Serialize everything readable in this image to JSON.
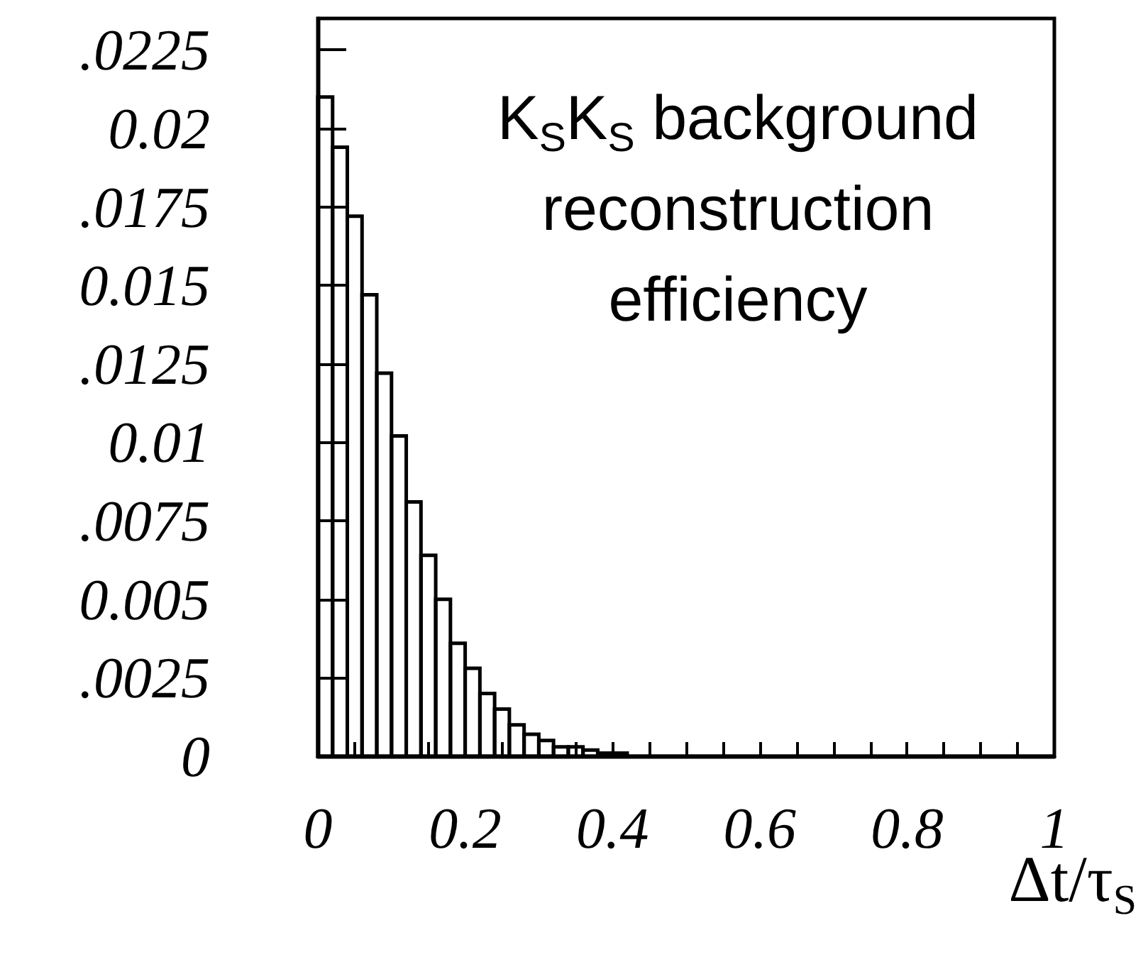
{
  "chart_data": {
    "type": "histogram",
    "xlabel": "Δt/τ$_{S}$",
    "annotations": [
      "K$_{S}$K$_{S}$ background reconstruction efficiency"
    ],
    "bins": [
      0,
      0.02,
      0.04,
      0.06,
      0.08,
      0.1,
      0.12,
      0.14,
      0.16,
      0.18,
      0.2,
      0.22,
      0.24,
      0.26,
      0.28,
      0.3,
      0.32,
      0.34,
      0.36,
      0.38,
      0.4,
      0.42,
      0.44,
      0.46,
      0.48,
      0.5,
      0.52,
      0.54,
      0.56,
      0.58,
      0.6,
      0.62,
      0.64,
      0.66,
      0.68,
      0.7,
      0.72,
      0.74,
      0.76,
      0.78,
      0.8,
      0.82,
      0.84,
      0.86,
      0.88,
      0.9,
      0.92,
      0.94,
      0.96,
      0.98,
      1
    ],
    "values": [
      0.021,
      0.0194,
      0.0172,
      0.0147,
      0.0122,
      0.0102,
      0.0081,
      0.0064,
      0.005,
      0.0036,
      0.0028,
      0.002,
      0.0015,
      0.001,
      0.0007,
      0.0005,
      0.0003,
      0.0003,
      0.0002,
      0.0001,
      0.0001,
      0,
      0,
      0,
      0,
      0,
      0,
      0,
      0,
      0,
      0,
      0,
      0,
      0,
      0,
      0,
      0,
      0,
      0,
      0,
      0,
      0,
      0,
      0,
      0,
      0,
      0,
      0,
      0,
      0
    ],
    "color": "#000000",
    "xlim": [
      0,
      1
    ],
    "xticks": [
      0,
      {
        "value": 0.05,
        "label": null
      },
      {
        "value": 0.1,
        "label": null
      },
      {
        "value": 0.15,
        "label": null
      },
      0.2,
      {
        "value": 0.25,
        "label": null
      },
      {
        "value": 0.3,
        "label": null
      },
      {
        "value": 0.35,
        "label": null
      },
      0.4,
      {
        "value": 0.45,
        "label": null
      },
      {
        "value": 0.5,
        "label": null
      },
      {
        "value": 0.55,
        "label": null
      },
      0.6,
      {
        "value": 0.65,
        "label": null
      },
      {
        "value": 0.7,
        "label": null
      },
      {
        "value": 0.75,
        "label": null
      },
      0.8,
      {
        "value": 0.85,
        "label": null
      },
      {
        "value": 0.9,
        "label": null
      },
      {
        "value": 0.95,
        "label": null
      },
      1
    ],
    "ylim": [
      0,
      0.0235
    ],
    "yticks": [
      0,
      {
        "value": 0.0025,
        "label": ".0025"
      },
      0.005,
      {
        "value": 0.0075,
        "label": ".0075"
      },
      0.01,
      {
        "value": 0.0125,
        "label": ".0125"
      },
      0.015,
      {
        "value": 0.0175,
        "label": ".0175"
      },
      0.02,
      {
        "value": 0.0225,
        "label": ".0225"
      }
    ],
    "grid": false
  }
}
